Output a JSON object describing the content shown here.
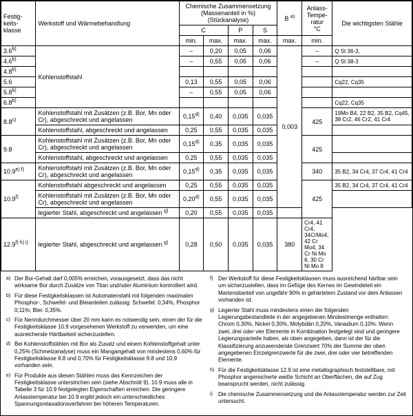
{
  "headers": {
    "col1": "Festig-keits-klasse",
    "col2": "Werkstoff und Wärmebehandlung",
    "chem_group": "Chemische Zusammensetzung\n(Massenanteil in %)\n(Stückanalyse)",
    "c_label": "C",
    "c_min": "min.",
    "c_max": "max.",
    "p_label": "P",
    "p_max": "max.",
    "s_label": "S",
    "s_max": "max.",
    "b_label": "B",
    "b_sup": "a)",
    "b_max": "max.",
    "anlass": "Anlass-Tempe-ratur",
    "anlass_unit": "°C",
    "anlass_min": "min.",
    "wichtig": "Die wichtigsten Stähle"
  },
  "rows": [
    {
      "k": "3.6",
      "ks": "b)",
      "mat_rowspan": 6,
      "mat": "Kohlenstoffstahl",
      "cmin": "–",
      "cmax": "0,20",
      "p": "0,05",
      "s": "0,06",
      "b_rowspan": 13,
      "b": "0,003",
      "t": "–",
      "st": "Q St 36-3,"
    },
    {
      "k": "4.6",
      "ks": "b)",
      "cmin": "–",
      "cmax": "0,55",
      "p": "0,05",
      "s": "0,06",
      "t": "–",
      "st": "Q St 38-3"
    },
    {
      "k": "4.8",
      "ks": "b)",
      "cmin": "",
      "cmax": "",
      "p": "",
      "s": "",
      "t": "",
      "st": ""
    },
    {
      "k": "5.6",
      "ks": "",
      "cmin": "0,13",
      "cmax": "0,55",
      "p": "0,05",
      "s": "0,06",
      "t": "",
      "st": "Cq22, Cq35"
    },
    {
      "k": "5.8",
      "ks": "b)",
      "cmin": "–",
      "cmax": "0,55",
      "p": "0,05",
      "s": "0,06",
      "t": "",
      "st": ""
    },
    {
      "k": "6.8",
      "ks": "b)",
      "cmin": "",
      "cmax": "",
      "p": "",
      "s": "",
      "t": "",
      "st": "Cq22, Cq35"
    },
    {
      "k": "8.8",
      "ks": "c)",
      "mat": "Kohlenstoffstahl mit Zusätzen (z.B. Bor, Mn oder Cr), abgeschreckt und angelassen",
      "cmin": "0,15",
      "cmins": "d)",
      "cmax": "0,40",
      "p": "0,035",
      "s": "0,035",
      "t_rowspan": 2,
      "t": "425",
      "st": "19Mn B4, 22 B2, 35 B2, Cq45, 38 Cr2, 46 Cr2, 41 Cr4"
    },
    {
      "k": "",
      "mat": "Kohlenstoffstahl, abgeschreckt und angelassen",
      "cmin": "0,25",
      "cmax": "0,55",
      "p": "0,035",
      "s": "0,035",
      "st": ""
    },
    {
      "k": "9.8",
      "ks": "",
      "mat": "Kohlenstoffstahl mit Zusätzen (z.B. Bor, Mn oder Cr), abgeschreckt und angelassen",
      "cmin": "0,15",
      "cmins": "d)",
      "cmax": "0,35",
      "p": "0,035",
      "s": "0,035",
      "t_rowspan": 2,
      "t": "425",
      "st": ""
    },
    {
      "k": "",
      "mat": "Kohlenstoffstahl, abgeschreckt und angelassen",
      "cmin": "0,25",
      "cmax": "0,55",
      "p": "0,035",
      "s": "0,035",
      "st": ""
    },
    {
      "k": "10.9",
      "ks": "e) f)",
      "mat": "Kohlenstoffstahl mit Zusätzen (z.B. Bor, Mn oder Cr), abgeschreckt und angelassen",
      "cmin": "0,15",
      "cmins": "d)",
      "cmax": "0,35",
      "p": "0,035",
      "s": "0,035",
      "t": "340",
      "st": "35 B2, 34 Cr4, 37 Cr4, 41 Cr4"
    },
    {
      "k": "10.9",
      "ks": "f)",
      "mat": "Kohlenstoffstahl abgeschreckt und angelassen",
      "cmin": "0,25",
      "cmax": "0,55",
      "p": "0,035",
      "s": "0,035",
      "t_rowspan": 3,
      "t": "425",
      "st": "35 B2, 34 Cr4, 37 Cr4, 41 Cr4"
    },
    {
      "k": "",
      "mat": "Kohlenstoffstahl mit Zusätzen (z.B. Bor, Mn oder Cr), abgeschreckt und angelassen",
      "cmin": "0,20",
      "cmins": "d)",
      "cmax": "0,55",
      "p": "0,035",
      "s": "0,035",
      "st": ""
    },
    {
      "k": "",
      "mat": "legierter Stahl, abgeschreckt und angelassen",
      "mats": "g)",
      "cmin": "0,20",
      "cmax": "0,55",
      "p": "0,035",
      "s": "0,035",
      "st": ""
    },
    {
      "k": "12.9",
      "ks": "f) h) i)",
      "mat": "legierter Stahl, abgeschreckt und angelassen",
      "mats": "g)",
      "cmin": "0,28",
      "cmax": "0,50",
      "p": "0,035",
      "s": "0,035",
      "t": "380",
      "st": "Cr4, 41 Cr4, 34CrMo4, 42 Cr Mo4, 34 Cr Ni Mo 6, 30 Cr Ni Mo 8"
    }
  ],
  "notes_left": [
    {
      "m": "a)",
      "t": "Der Bor-Gehalt darf 0,005% erreichen, vorausgesetzt, dass das nicht wirksame Bor durch Zusätze von Titan und/oder Aluminium kontrolliert wird."
    },
    {
      "m": "b)",
      "t": "Für diese Festigkeitsklassen ist Automatenstahl mit folgenden maximalen Phosphor-, Schwefel- und Bleianteilen zulässig: Schwefel: 0,34%, Phosphor 0,11%; Blei: 0,35%."
    },
    {
      "m": "c)",
      "t": "Für Nenndurchmesser über 20 mm kann es notwendig sein, einen der für die Festigkeitsklasse 10.9 vorgesehenen Werkstoff zu verwenden, um eine ausreichende Härtbarkeit sicherzustellen."
    },
    {
      "m": "d)",
      "t": "Bei Kohlenstoffstählen mit Bor als Zusatz und einem Kohlenstoffgehalt unter 0,25% (Schmelzanalyse) muss ein Mangangehalt von mindestens 0,60% für Festigkeitsklasse 8.8 und 0,70% für Festigkeitsklasse 9.8 und 10.9 vorhanden sein."
    },
    {
      "m": "e)",
      "t": "Für Produkte aus diesen Stählen muss das Kennzeichen der Festigkeitsklasse unterstrichen sein (siehe Abschnitt 9). 10.9 muss alle in Tabelle 3 für 10.9 festgelegten Eigenschaften erreichen. Die geringere Anlasstemperatur bei 10.9 ergibt jedoch ein unterschiedliches Spannungsrelaxationsverfahren bei höheren Temperaturen."
    }
  ],
  "notes_right": [
    {
      "m": "f)",
      "t": "Der Werkstoff für diese Festigkeitsklassen muss ausreichend härtbar sein um sicherzustellen, dass im Gefüge des Kernes im Gewindeteil ein Martensitanteil von ungefähr 90% in gehärtetem Zustand vor dem Anlassen vorhanden ist."
    },
    {
      "m": "g)",
      "t": "Legierter Stahl muss mindestens einen der folgenden Legierungsbestandteile in der angegebenen Mindestmenge enthalten: Chrom 0,30%, Nickel 0,30%, Molybdän 0,20%, Vanadium 0,10%. Wenn zwei, drei oder vier Elemente in Kombination festgelegt sind und geringere Legierungsanteile haben, als oben angegeben, dann ist der für die Klassifizierung anzuwendende Grenzwert 70% der Summe der oben angegebenen Einzelgrenzwerte für die zwei, drei oder vier betreffenden Elemente."
    },
    {
      "m": "h)",
      "t": "Für die Festigkeitsklasse 12.9 ist eine metallographisch feststellbare, mit Phosphor angereicherte weiße Schicht an Oberflächen, die auf Zug beansprucht werden, nicht zulässig."
    },
    {
      "m": "i)",
      "t": "Die chemische Zusammensetzung und die Anlasstemperatur werden zur Zeit untersucht."
    }
  ],
  "col_widths": {
    "k": 48,
    "mat": 198,
    "cmin": 34,
    "cmax": 34,
    "p": 34,
    "s": 34,
    "b": 34,
    "t": 42,
    "st": 110
  },
  "colors": {
    "border": "#000000",
    "bg": "#ffffff",
    "text": "#000000"
  }
}
